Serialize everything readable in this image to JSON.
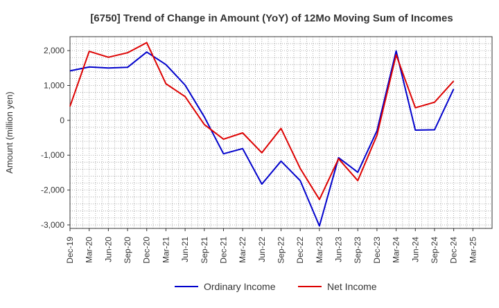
{
  "chart_data": {
    "type": "line",
    "title": "[6750]  Trend of Change in Amount (YoY) of 12Mo Moving Sum of Incomes",
    "ylabel": "Amount (million yen)",
    "xlabel": "",
    "ylim": [
      -3100,
      2400
    ],
    "yticks": [
      2000,
      1000,
      0,
      -1000,
      -2000,
      -3000
    ],
    "ytick_labels": [
      "2,000",
      "1,000",
      "0",
      "-1,000",
      "-2,000",
      "-3,000"
    ],
    "categories": [
      "Dec-19",
      "Mar-20",
      "Jun-20",
      "Sep-20",
      "Dec-20",
      "Mar-21",
      "Jun-21",
      "Sep-21",
      "Dec-21",
      "Mar-22",
      "Jun-22",
      "Sep-22",
      "Dec-22",
      "Mar-23",
      "Jun-23",
      "Sep-23",
      "Dec-23",
      "Mar-24",
      "Jun-24",
      "Sep-24",
      "Dec-24",
      "Mar-25"
    ],
    "grid": true,
    "legend_position": "bottom-center",
    "series": [
      {
        "name": "Ordinary Income",
        "color": "#0000cc",
        "values": [
          1420,
          1530,
          1500,
          1520,
          1960,
          1600,
          1010,
          100,
          -960,
          -810,
          -1830,
          -1170,
          -1730,
          -3030,
          -1070,
          -1490,
          -300,
          1990,
          -280,
          -270,
          900,
          null
        ]
      },
      {
        "name": "Net Income",
        "color": "#dd0000",
        "values": [
          400,
          1980,
          1810,
          1940,
          2230,
          1050,
          680,
          -120,
          -540,
          -360,
          -930,
          -230,
          -1380,
          -2270,
          -1100,
          -1730,
          -430,
          1880,
          360,
          520,
          1130,
          null
        ]
      }
    ]
  }
}
